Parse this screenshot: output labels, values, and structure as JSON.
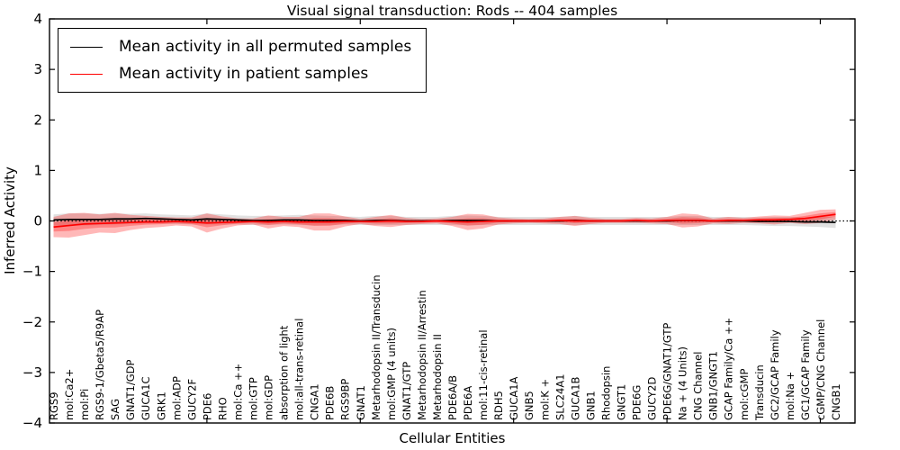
{
  "chart_data": {
    "type": "line",
    "title": "Visual signal transduction: Rods -- 404 samples",
    "xlabel": "Cellular Entities",
    "ylabel": "Inferred Activity",
    "ylim": [
      -4,
      4
    ],
    "yticks": [
      4,
      3,
      2,
      1,
      0,
      -1,
      -2,
      -3,
      -4
    ],
    "ytick_labels": [
      "4",
      "3",
      "2",
      "1",
      "0",
      "−1",
      "−2",
      "−3",
      "−4"
    ],
    "xtick_indices": [
      10,
      20,
      30,
      40,
      50
    ],
    "grid": false,
    "legend_position": "upper left",
    "zero_line": {
      "style": "dotted",
      "color": "#000000",
      "y": 0
    },
    "categories": [
      "RGS9",
      "mol:Ca2+",
      "mol:Pi",
      "RGS9-1/Gbeta5/R9AP",
      "SAG",
      "GNAT1/GDP",
      "GUCA1C",
      "GRK1",
      "mol:ADP",
      "GUCY2F",
      "PDE6",
      "RHO",
      "mol:Ca ++",
      "mol:GTP",
      "mol:GDP",
      "absorption of light",
      "mol:all-trans-retinal",
      "CNGA1",
      "PDE6B",
      "RGS9BP",
      "GNAT1",
      "Metarhodopsin II/Transducin",
      "mol:GMP (4 units)",
      "GNAT1/GTP",
      "Metarhodopsin II/Arrestin",
      "Metarhodopsin II",
      "PDE6A/B",
      "PDE6A",
      "mol:11-cis-retinal",
      "RDH5",
      "GUCA1A",
      "GNB5",
      "mol:K +",
      "SLC24A1",
      "GUCA1B",
      "GNB1",
      "Rhodopsin",
      "GNGT1",
      "PDE6G",
      "GUCY2D",
      "PDE6G/GNAT1/GTP",
      "Na + (4 Units)",
      "CNG Channel",
      "GNB1/GNGT1",
      "GCAP Family/Ca ++",
      "mol:cGMP",
      "Transducin",
      "GC2/GCAP Family",
      "mol:Na +",
      "GC1/GCAP Family",
      "cGMP/CNG Channel",
      "CNGB1"
    ],
    "series": [
      {
        "name": "Mean activity in all permuted samples",
        "color": "#000000",
        "band_color": "#aaaaaa",
        "band_opacity": 0.35,
        "values": [
          0.02,
          0.03,
          0.03,
          0.03,
          0.04,
          0.04,
          0.05,
          0.04,
          0.03,
          0.02,
          0.04,
          0.03,
          0.02,
          0.01,
          0.01,
          0.02,
          0.02,
          0.01,
          0.01,
          0.01,
          0.0,
          0.01,
          0.01,
          0.0,
          0.0,
          0.0,
          0.01,
          0.01,
          0.01,
          0.0,
          0.0,
          0.0,
          0.0,
          0.0,
          0.01,
          0.0,
          0.0,
          0.0,
          0.0,
          0.0,
          0.0,
          0.01,
          0.01,
          0.0,
          0.0,
          0.0,
          -0.01,
          -0.01,
          -0.01,
          -0.02,
          -0.02,
          -0.03
        ],
        "std": [
          0.11,
          0.12,
          0.12,
          0.11,
          0.11,
          0.1,
          0.1,
          0.09,
          0.09,
          0.09,
          0.11,
          0.1,
          0.09,
          0.09,
          0.09,
          0.09,
          0.1,
          0.1,
          0.09,
          0.08,
          0.08,
          0.09,
          0.09,
          0.08,
          0.08,
          0.08,
          0.09,
          0.1,
          0.09,
          0.08,
          0.08,
          0.08,
          0.08,
          0.08,
          0.09,
          0.08,
          0.08,
          0.08,
          0.08,
          0.08,
          0.08,
          0.09,
          0.09,
          0.08,
          0.08,
          0.08,
          0.08,
          0.09,
          0.09,
          0.09,
          0.1,
          0.11
        ]
      },
      {
        "name": "Mean activity in patient samples",
        "color": "#ff0000",
        "band_color": "#ff0000",
        "band_opacity": 0.28,
        "values": [
          -0.12,
          -0.09,
          -0.06,
          -0.05,
          -0.04,
          -0.03,
          -0.02,
          -0.02,
          -0.01,
          -0.02,
          -0.04,
          -0.03,
          -0.02,
          -0.01,
          -0.02,
          -0.01,
          -0.02,
          -0.02,
          -0.02,
          -0.01,
          -0.01,
          -0.01,
          0.0,
          -0.01,
          -0.01,
          0.0,
          -0.01,
          -0.02,
          -0.01,
          0.0,
          0.0,
          0.0,
          0.0,
          0.01,
          0.0,
          0.0,
          0.0,
          0.0,
          0.01,
          0.0,
          0.01,
          0.01,
          0.01,
          0.0,
          0.01,
          0.01,
          0.02,
          0.02,
          0.03,
          0.05,
          0.09,
          0.13
        ],
        "std": [
          0.2,
          0.24,
          0.22,
          0.18,
          0.2,
          0.15,
          0.12,
          0.1,
          0.08,
          0.09,
          0.19,
          0.12,
          0.07,
          0.06,
          0.13,
          0.09,
          0.1,
          0.17,
          0.17,
          0.1,
          0.05,
          0.09,
          0.12,
          0.07,
          0.05,
          0.05,
          0.09,
          0.16,
          0.14,
          0.07,
          0.05,
          0.04,
          0.05,
          0.07,
          0.1,
          0.06,
          0.04,
          0.04,
          0.05,
          0.05,
          0.07,
          0.14,
          0.12,
          0.05,
          0.07,
          0.05,
          0.07,
          0.09,
          0.07,
          0.11,
          0.13,
          0.1
        ]
      }
    ]
  }
}
